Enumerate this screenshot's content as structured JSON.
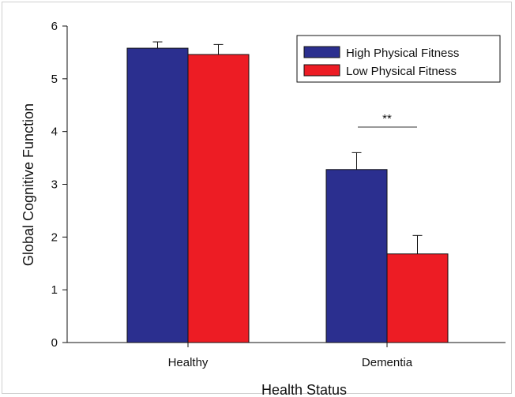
{
  "chart_data": {
    "type": "bar",
    "title": "",
    "xlabel": "Health Status",
    "ylabel": "Global Cognitive Function",
    "categories": [
      "Healthy",
      "Dementia"
    ],
    "ylim": [
      0,
      6
    ],
    "yticks": [
      "0",
      "1",
      "2",
      "3",
      "4",
      "5",
      "6"
    ],
    "series": [
      {
        "name": "High Physical Fitness",
        "color": "#2b2f8f",
        "values": [
          5.58,
          3.28
        ],
        "errors": [
          0.12,
          0.32
        ]
      },
      {
        "name": "Low Physical Fitness",
        "color": "#ed1c24",
        "values": [
          5.46,
          1.68
        ],
        "errors": [
          0.19,
          0.35
        ]
      }
    ],
    "annotations": [
      {
        "text": "**",
        "category": "Dementia"
      }
    ],
    "legend_position": "top-right",
    "grid": false
  }
}
